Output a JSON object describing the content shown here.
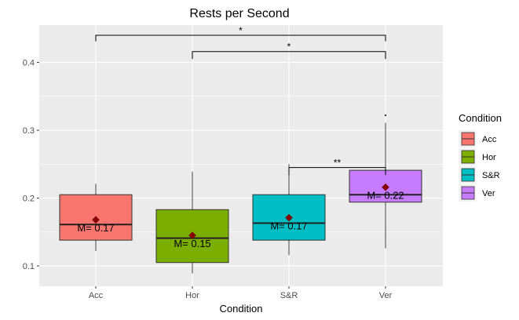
{
  "chart_data": {
    "type": "box",
    "title": "Rests per Second",
    "xlabel": "Condition",
    "ylabel": "",
    "ylim": [
      0.07,
      0.455
    ],
    "yticks": [
      0.1,
      0.2,
      0.3,
      0.4
    ],
    "ytick_labels": [
      "0.1",
      "0.2",
      "0.3",
      "0.4"
    ],
    "grid": true,
    "legend_title": "Condition",
    "legend_position": "right",
    "categories": [
      "Acc",
      "Hor",
      "S&R",
      "Ver"
    ],
    "colors": [
      "#F8766D",
      "#7CAE00",
      "#00BFC4",
      "#C77CFF"
    ],
    "mean_color": "#8B0000",
    "boxes": [
      {
        "category": "Acc",
        "whisker_low": 0.122,
        "q1": 0.138,
        "median": 0.161,
        "q3": 0.205,
        "whisker_high": 0.221,
        "mean": 0.168,
        "outliers": [],
        "mean_label": "M= 0.17"
      },
      {
        "category": "Hor",
        "whisker_low": 0.089,
        "q1": 0.105,
        "median": 0.141,
        "q3": 0.183,
        "whisker_high": 0.239,
        "mean": 0.145,
        "outliers": [],
        "mean_label": "M= 0.15"
      },
      {
        "category": "S&R",
        "whisker_low": 0.116,
        "q1": 0.138,
        "median": 0.163,
        "q3": 0.205,
        "whisker_high": 0.25,
        "mean": 0.171,
        "outliers": [],
        "mean_label": "M= 0.17"
      },
      {
        "category": "Ver",
        "whisker_low": 0.126,
        "q1": 0.194,
        "median": 0.205,
        "q3": 0.241,
        "whisker_high": 0.311,
        "mean": 0.216,
        "outliers": [
          0.322
        ],
        "mean_label": "M= 0.22"
      }
    ],
    "significance": [
      {
        "from": "Acc",
        "to": "Ver",
        "y": 0.44,
        "drop": 0.431,
        "label": "*"
      },
      {
        "from": "Hor",
        "to": "Ver",
        "y": 0.416,
        "drop": 0.405,
        "label": "*"
      },
      {
        "from": "S&R",
        "to": "Ver",
        "y": 0.245,
        "drop": 0.234,
        "label": "**"
      }
    ]
  }
}
